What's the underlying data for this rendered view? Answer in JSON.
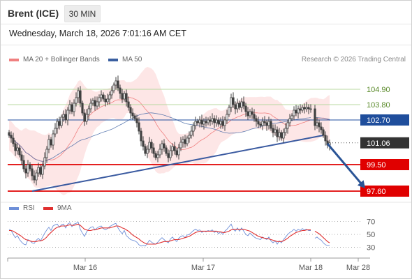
{
  "header": {
    "instrument": "Brent (ICE)",
    "timeframe": "30 MIN",
    "datetime": "Wednesday, March 18, 2026 7:01:16 AM CET"
  },
  "legend": {
    "ma20_bb": "MA 20 + Bollinger Bands",
    "ma50": "MA 50",
    "copyright": "Research © 2026 Trading Central",
    "rsi": "RSI",
    "rsi_ma": "9MA"
  },
  "colors": {
    "bb_fill": "#fcdede",
    "ma20": "#f08080",
    "ma50": "#3a5fa0",
    "candle": "#404040",
    "resistance": "#b8d8a0",
    "resistance_text": "#5a8a2a",
    "pivot": "#1f4e9c",
    "support": "#e00000",
    "trendline": "#3a5aa0",
    "arrow": "#2a5496",
    "current_price_box": "#333333",
    "rsi": "#6e8fd8",
    "rsi_ma": "#e03030"
  },
  "chart_data": [
    {
      "type": "candlestick",
      "title": "Brent (ICE)",
      "timeframe": "30 MIN",
      "x_labels": [
        "Mar 16",
        "Mar 17",
        "Mar 18",
        "Mar 28"
      ],
      "ylim": [
        96.8,
        106.4
      ],
      "current_price": 101.06,
      "levels": [
        {
          "name": "resistance 2",
          "value": 104.9,
          "label": "104.90",
          "kind": "resistance"
        },
        {
          "name": "resistance 1",
          "value": 103.8,
          "label": "103.80",
          "kind": "resistance"
        },
        {
          "name": "pivot",
          "value": 102.7,
          "label": "102.70",
          "kind": "pivot"
        },
        {
          "name": "support 1",
          "value": 99.5,
          "label": "99.50",
          "kind": "support"
        },
        {
          "name": "support 2",
          "value": 97.6,
          "label": "97.60",
          "kind": "support"
        }
      ],
      "trendline": {
        "from": {
          "bar": 11,
          "price": 97.6
        },
        "to": {
          "bar": 150,
          "price": 101.6
        }
      },
      "forecast_arrow": {
        "from": {
          "bar": 152,
          "price": 101.0
        },
        "to": {
          "bar": 160,
          "price": 97.8
        }
      },
      "close": [
        101.6,
        101.4,
        101.0,
        100.5,
        100.7,
        100.2,
        99.8,
        99.2,
        98.9,
        99.5,
        99.2,
        98.7,
        98.4,
        98.9,
        99.3,
        98.8,
        99.4,
        100.0,
        100.6,
        101.3,
        100.9,
        101.7,
        102.1,
        102.6,
        102.3,
        102.9,
        103.1,
        102.7,
        103.4,
        103.8,
        103.3,
        103.9,
        104.3,
        104.8,
        103.9,
        103.2,
        102.6,
        103.1,
        103.5,
        103.9,
        104.1,
        103.7,
        104.0,
        104.3,
        104.5,
        104.2,
        104.0,
        104.2,
        104.5,
        104.8,
        105.2,
        105.5,
        105.0,
        104.6,
        104.2,
        104.6,
        104.0,
        103.6,
        103.2,
        103.0,
        102.8,
        102.5,
        101.9,
        101.2,
        100.8,
        100.3,
        100.6,
        101.1,
        100.7,
        100.3,
        100.0,
        100.2,
        100.6,
        101.0,
        100.7,
        100.3,
        100.0,
        100.5,
        100.8,
        100.5,
        100.2,
        100.7,
        101.1,
        101.3,
        101.0,
        101.4,
        101.6,
        101.9,
        102.3,
        102.6,
        102.5,
        102.7,
        102.4,
        102.6,
        102.5,
        102.7,
        102.6,
        102.8,
        102.5,
        102.7,
        102.4,
        102.6,
        102.3,
        102.7,
        103.1,
        103.6,
        104.3,
        103.8,
        103.5,
        103.9,
        103.6,
        104.0,
        103.7,
        103.3,
        103.0,
        103.3,
        103.1,
        102.8,
        102.6,
        102.4,
        102.3,
        102.6,
        102.5,
        102.3,
        102.6,
        102.1,
        101.8,
        102.0,
        101.5,
        101.8,
        101.4,
        101.8,
        102.1,
        102.5,
        102.8,
        103.0,
        103.4,
        103.2,
        103.5,
        103.4,
        103.6,
        103.5,
        103.6,
        103.5,
        103.5,
        null,
        102.3,
        102.5,
        102.2,
        102.0,
        101.6,
        101.2,
        100.9,
        101.06
      ],
      "open_last_tail": "candles colored: white = up, dark = down"
    },
    {
      "type": "line",
      "title": "RSI",
      "series": [
        {
          "name": "RSI",
          "values": [
            58,
            56,
            50,
            45,
            48,
            42,
            38,
            35,
            34,
            42,
            40,
            37,
            36,
            41,
            44,
            40,
            46,
            52,
            57,
            61,
            56,
            63,
            65,
            66,
            61,
            65,
            66,
            60,
            66,
            68,
            62,
            66,
            67,
            69,
            58,
            52,
            47,
            54,
            58,
            61,
            62,
            57,
            60,
            62,
            63,
            59,
            57,
            59,
            62,
            64,
            66,
            67,
            60,
            55,
            51,
            56,
            48,
            45,
            42,
            41,
            40,
            38,
            34,
            32,
            33,
            32,
            36,
            41,
            38,
            36,
            35,
            38,
            42,
            45,
            42,
            39,
            37,
            43,
            46,
            42,
            39,
            44,
            47,
            48,
            45,
            49,
            50,
            53,
            56,
            58,
            56,
            57,
            53,
            55,
            54,
            56,
            55,
            57,
            53,
            55,
            51,
            54,
            50,
            55,
            58,
            62,
            66,
            58,
            55,
            60,
            55,
            60,
            55,
            50,
            48,
            52,
            49,
            46,
            44,
            43,
            42,
            46,
            44,
            42,
            46,
            40,
            37,
            40,
            35,
            40,
            37,
            42,
            46,
            50,
            53,
            55,
            58,
            55,
            58,
            56,
            59,
            57,
            58,
            56,
            56,
            null,
            44,
            46,
            43,
            41,
            37,
            34,
            33,
            33
          ]
        },
        {
          "name": "9MA",
          "values": [
            56,
            56,
            55,
            53,
            51,
            49,
            47,
            44,
            42,
            41,
            40,
            39,
            39,
            39,
            40,
            40,
            41,
            43,
            46,
            50,
            53,
            56,
            59,
            61,
            62,
            63,
            63,
            63,
            64,
            65,
            64,
            64,
            65,
            66,
            64,
            61,
            58,
            57,
            56,
            56,
            57,
            57,
            58,
            59,
            60,
            60,
            60,
            60,
            60,
            61,
            62,
            63,
            63,
            62,
            60,
            59,
            57,
            55,
            52,
            49,
            47,
            45,
            43,
            40,
            38,
            36,
            35,
            35,
            35,
            35,
            35,
            36,
            37,
            38,
            39,
            39,
            39,
            40,
            41,
            42,
            42,
            42,
            43,
            44,
            45,
            46,
            47,
            49,
            51,
            53,
            54,
            55,
            55,
            55,
            55,
            55,
            55,
            55,
            55,
            55,
            54,
            54,
            53,
            53,
            54,
            55,
            57,
            58,
            58,
            58,
            58,
            58,
            58,
            57,
            56,
            55,
            53,
            51,
            49,
            47,
            46,
            45,
            44,
            44,
            43,
            42,
            41,
            40,
            39,
            39,
            39,
            40,
            42,
            44,
            47,
            49,
            51,
            53,
            54,
            55,
            56,
            56,
            57,
            57,
            57,
            null,
            55,
            53,
            51,
            48,
            45,
            42,
            39,
            37
          ]
        }
      ],
      "yticks": [
        30,
        50,
        70
      ],
      "ylim": [
        22,
        76
      ],
      "reference_lines": [
        30,
        50,
        70
      ]
    }
  ],
  "axis": {
    "x_ticks": [
      "Mar 16",
      "Mar 17",
      "Mar 18",
      "Mar 28"
    ],
    "rsi_ticks": [
      "70",
      "50",
      "30"
    ]
  }
}
